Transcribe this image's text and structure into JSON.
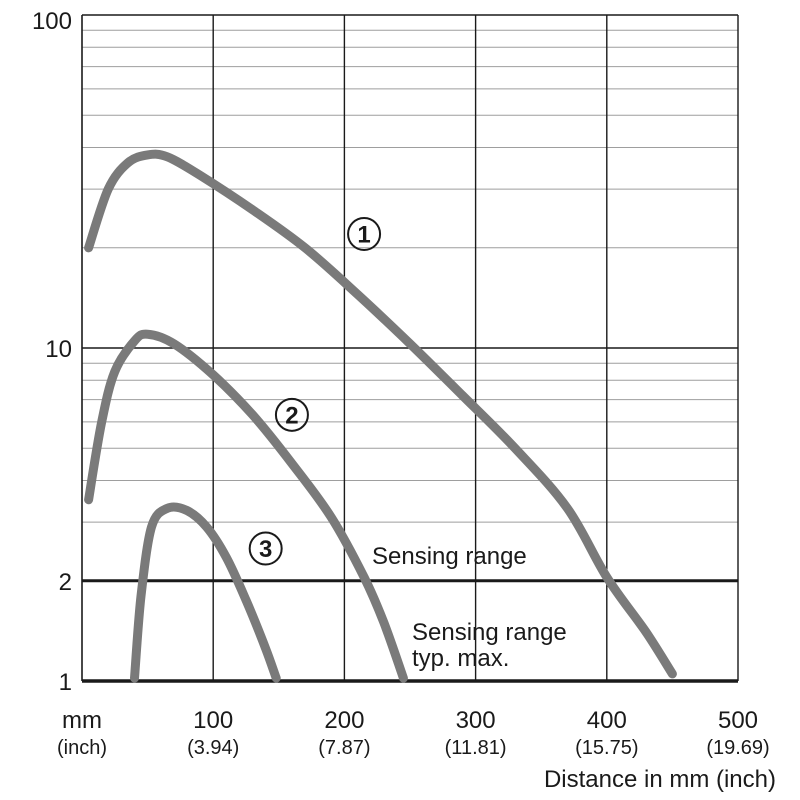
{
  "chart_data": {
    "type": "line",
    "y_scale": "log",
    "xlim": [
      0,
      500
    ],
    "ylim": [
      1,
      100
    ],
    "x_unit_label": "mm",
    "x_unit_sub_label": "(inch)",
    "x_ticks": [
      {
        "value": 100,
        "label": "100",
        "sub": "(3.94)"
      },
      {
        "value": 200,
        "label": "200",
        "sub": "(7.87)"
      },
      {
        "value": 300,
        "label": "300",
        "sub": "(11.81)"
      },
      {
        "value": 400,
        "label": "400",
        "sub": "(15.75)"
      },
      {
        "value": 500,
        "label": "500",
        "sub": "(19.69)"
      }
    ],
    "y_ticks": [
      {
        "value": 1,
        "label": "1"
      },
      {
        "value": 2,
        "label": "2"
      },
      {
        "value": 10,
        "label": "10"
      },
      {
        "value": 100,
        "label": "100"
      }
    ],
    "xlabel": "Distance in mm (inch)",
    "reference_lines": [
      {
        "y": 2,
        "label": "Sensing range"
      },
      {
        "y": 1,
        "label_line1": "Sensing range",
        "label_line2": "typ. max."
      }
    ],
    "series": [
      {
        "name": "1",
        "marker": "①",
        "points": [
          [
            5,
            20
          ],
          [
            20,
            30
          ],
          [
            35,
            36
          ],
          [
            50,
            38
          ],
          [
            65,
            37.5
          ],
          [
            90,
            33
          ],
          [
            130,
            26
          ],
          [
            170,
            20
          ],
          [
            210,
            14.5
          ],
          [
            250,
            10.3
          ],
          [
            290,
            7.2
          ],
          [
            330,
            5
          ],
          [
            370,
            3.3
          ],
          [
            400,
            2.05
          ],
          [
            430,
            1.4
          ],
          [
            450,
            1.05
          ]
        ]
      },
      {
        "name": "2",
        "marker": "②",
        "points": [
          [
            5,
            3.5
          ],
          [
            15,
            6
          ],
          [
            25,
            8.5
          ],
          [
            40,
            10.5
          ],
          [
            50,
            11
          ],
          [
            70,
            10.3
          ],
          [
            100,
            8.3
          ],
          [
            130,
            6.3
          ],
          [
            160,
            4.5
          ],
          [
            190,
            3.1
          ],
          [
            215,
            2.05
          ],
          [
            230,
            1.5
          ],
          [
            245,
            1.02
          ]
        ]
      },
      {
        "name": "3",
        "marker": "③",
        "points": [
          [
            40,
            1.02
          ],
          [
            45,
            1.8
          ],
          [
            53,
            2.9
          ],
          [
            65,
            3.3
          ],
          [
            80,
            3.25
          ],
          [
            95,
            2.9
          ],
          [
            110,
            2.35
          ],
          [
            125,
            1.75
          ],
          [
            140,
            1.25
          ],
          [
            148,
            1.02
          ]
        ]
      }
    ],
    "series_marker_positions": [
      {
        "name": "1",
        "x": 215,
        "y": 22
      },
      {
        "name": "2",
        "x": 160,
        "y": 6.3
      },
      {
        "name": "3",
        "x": 140,
        "y": 2.5
      }
    ]
  }
}
